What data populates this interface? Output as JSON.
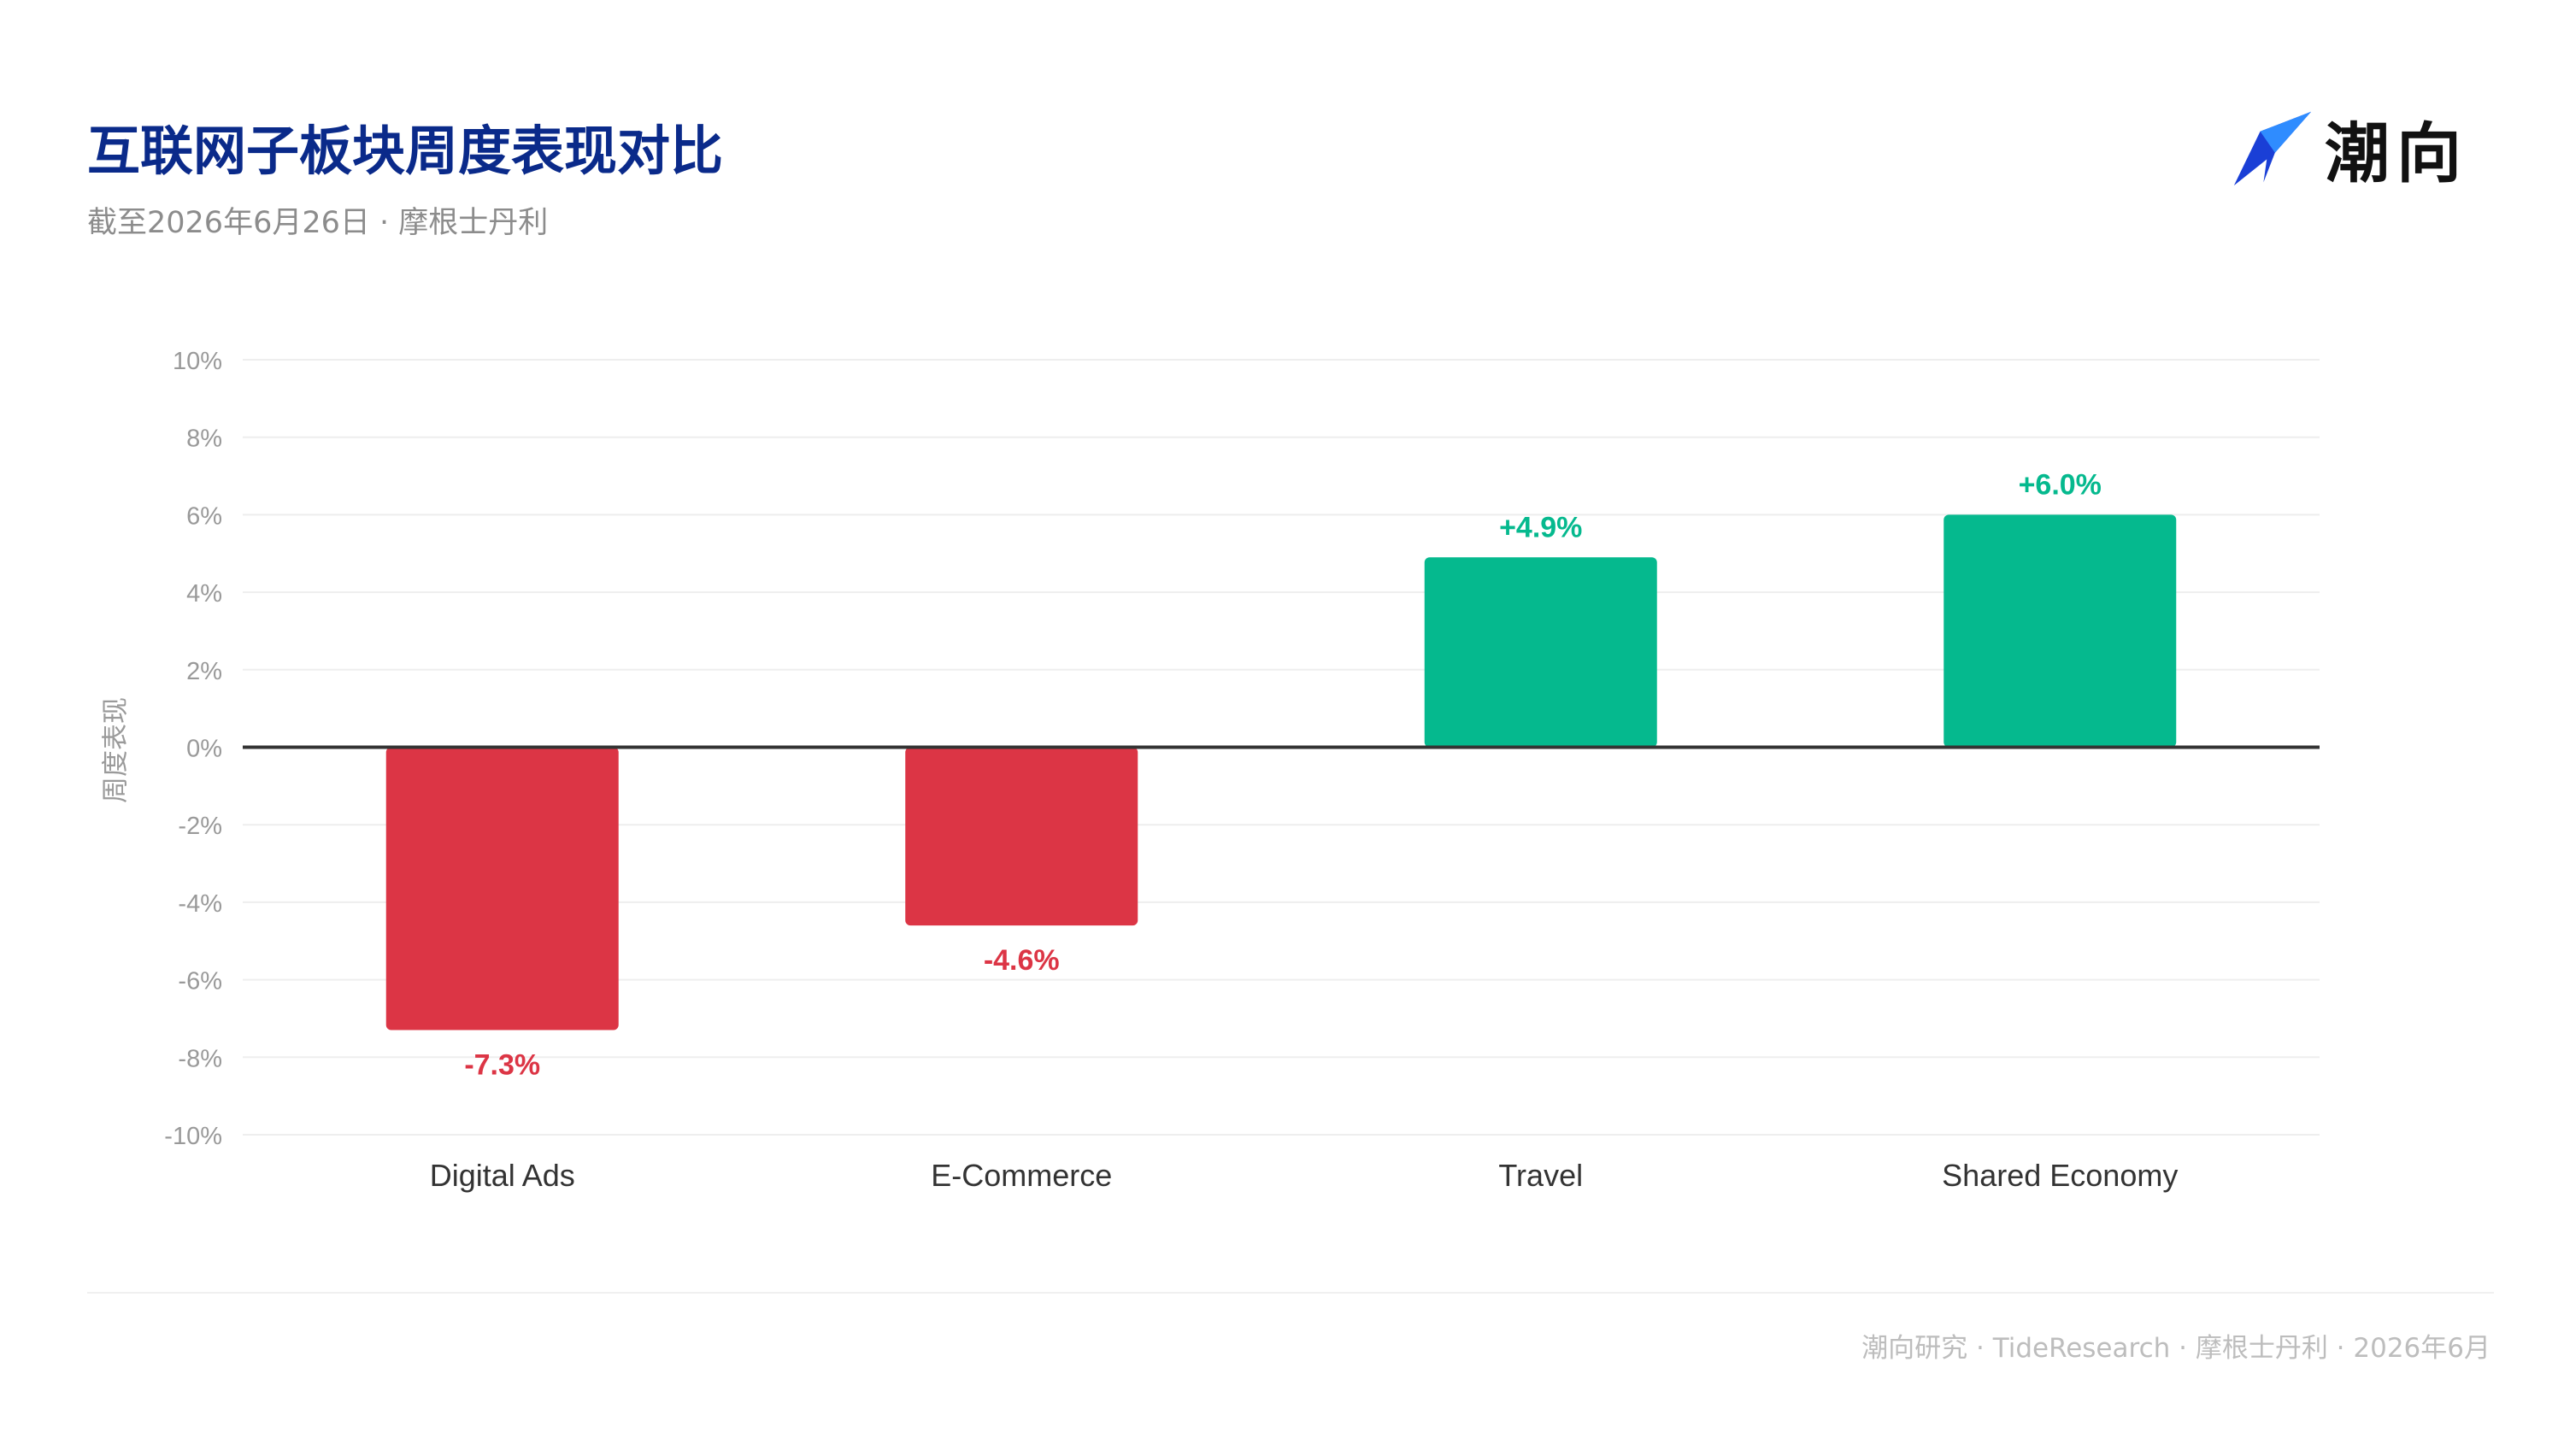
{
  "header": {
    "title": "互联网子板块周度表现对比",
    "subtitle": "截至2026年6月26日 · 摩根士丹利"
  },
  "brand": {
    "name": "潮向",
    "icon": "arrow-logo-icon",
    "icon_colors": [
      "#1a3fd6",
      "#2f8cff"
    ]
  },
  "footer": {
    "text": "潮向研究 · TideResearch · 摩根士丹利 · 2026年6月"
  },
  "colors": {
    "positive": "#05b98e",
    "negative": "#dc3545",
    "grid": "#eeeeee",
    "zero_line": "#333333",
    "tick_text": "#999999",
    "category_text": "#333333"
  },
  "chart_data": {
    "type": "bar",
    "categories": [
      "Digital Ads",
      "E-Commerce",
      "Travel",
      "Shared Economy"
    ],
    "values": [
      -7.3,
      -4.6,
      4.9,
      6.0
    ],
    "data_labels": [
      "-7.3%",
      "-4.6%",
      "+4.9%",
      "+6.0%"
    ],
    "ylabel": "周度表现",
    "ylim": [
      -10,
      10
    ],
    "yticks": [
      10,
      8,
      6,
      4,
      2,
      0,
      -2,
      -4,
      -6,
      -8,
      -10
    ],
    "ytick_labels": [
      "10%",
      "8%",
      "6%",
      "4%",
      "2%",
      "0%",
      "-2%",
      "-4%",
      "-6%",
      "-8%",
      "-10%"
    ],
    "grid": true,
    "legend": "none"
  }
}
